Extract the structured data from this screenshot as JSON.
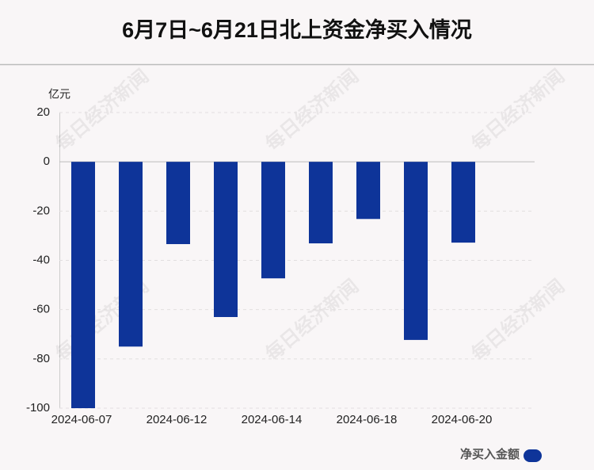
{
  "chart_data": {
    "type": "bar",
    "title": "6月7日~6月21日北上资金净买入情况",
    "y_unit": "亿元",
    "watermark": "每日经济新闻",
    "categories": [
      "2024-06-07",
      null,
      "2024-06-12",
      null,
      "2024-06-14",
      null,
      "2024-06-18",
      null,
      "2024-06-20",
      null
    ],
    "series": [
      {
        "name": "净买入金额",
        "color": "#0e3499",
        "values": [
          -100,
          -75,
          -33.4,
          -63,
          -47.3,
          -33.1,
          -23.2,
          -72.3,
          -32.8,
          null
        ]
      }
    ],
    "ylim": [
      -100,
      20
    ],
    "yticks": [
      -100,
      -80,
      -60,
      -40,
      -20,
      0,
      20
    ],
    "grid": true
  }
}
